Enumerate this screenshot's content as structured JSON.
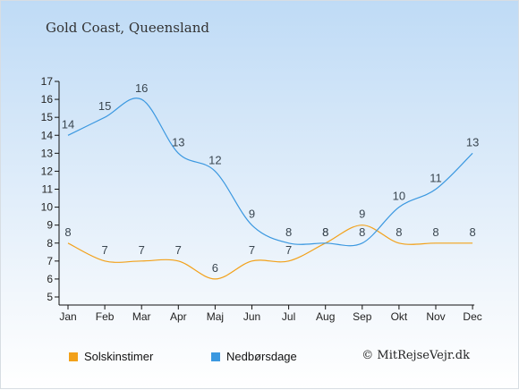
{
  "title": "Gold Coast, Queensland",
  "copyright": "© MitRejseVejr.dk",
  "colors": {
    "sun": "#f2a11a",
    "rain": "#3b98e0"
  },
  "chart_data": {
    "type": "line",
    "categories": [
      "Jan",
      "Feb",
      "Mar",
      "Apr",
      "Maj",
      "Jun",
      "Jul",
      "Aug",
      "Sep",
      "Okt",
      "Nov",
      "Dec"
    ],
    "ylim": [
      5,
      17
    ],
    "yticks": [
      5,
      6,
      7,
      8,
      9,
      10,
      11,
      12,
      13,
      14,
      15,
      16,
      17
    ],
    "grid": false,
    "legend_position": "bottom",
    "series": [
      {
        "name": "Solskinstimer",
        "color": "#f2a11a",
        "values": [
          8,
          7,
          7,
          7,
          6,
          7,
          7,
          8,
          9,
          8,
          8,
          8
        ]
      },
      {
        "name": "Nedbørsdage",
        "color": "#3b98e0",
        "values": [
          14,
          15,
          16,
          13,
          12,
          9,
          8,
          8,
          8,
          10,
          11,
          13
        ]
      }
    ]
  }
}
